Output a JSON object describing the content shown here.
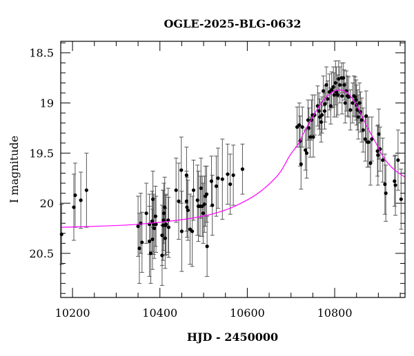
{
  "chart_data": {
    "type": "scatter",
    "title": "OGLE-2025-BLG-0632",
    "xlabel": "HJD - 2450000",
    "ylabel": "I magnitude",
    "xlim": [
      10173,
      10961
    ],
    "ylim": [
      20.94,
      18.385
    ],
    "y_inverted": true,
    "xticks": [
      10200,
      10400,
      10600,
      10800
    ],
    "xtick_labels": [
      "10200",
      "10400",
      "10600",
      "10800"
    ],
    "yticks": [
      18.5,
      19,
      19.5,
      20,
      20.5
    ],
    "ytick_labels": [
      "18.5",
      "19",
      "19.5",
      "20",
      "20.5"
    ],
    "grid": false,
    "colors": {
      "points": "#000000",
      "errorbars": "#555555",
      "model": "#ff00ff"
    },
    "series": [
      {
        "kind": "data-with-errorbars",
        "points": [
          [
            10175,
            20.31,
            0.3
          ],
          [
            10203,
            20.04,
            0.33
          ],
          [
            10206,
            19.92,
            0.32
          ],
          [
            10219,
            19.97,
            0.28
          ],
          [
            10232,
            19.87,
            0.37
          ],
          [
            10350,
            20.23,
            0.3
          ],
          [
            10353,
            20.45,
            0.35
          ],
          [
            10356,
            20.2,
            0.3
          ],
          [
            10359,
            20.39,
            0.3
          ],
          [
            10369,
            20.1,
            0.3
          ],
          [
            10376,
            20.21,
            0.3
          ],
          [
            10376,
            20.38,
            0.35
          ],
          [
            10379,
            20.5,
            0.3
          ],
          [
            10382,
            20.18,
            0.3
          ],
          [
            10383,
            20.36,
            0.3
          ],
          [
            10384,
            19.96,
            0.28
          ],
          [
            10386,
            20.21,
            0.3
          ],
          [
            10387,
            20.25,
            0.3
          ],
          [
            10390,
            20.13,
            0.3
          ],
          [
            10391,
            20.21,
            0.28
          ],
          [
            10405,
            20.32,
            0.3
          ],
          [
            10405,
            20.52,
            0.3
          ],
          [
            10407,
            20.22,
            0.35
          ],
          [
            10408,
            20.17,
            0.3
          ],
          [
            10409,
            20.1,
            0.3
          ],
          [
            10411,
            20.04,
            0.3
          ],
          [
            10412,
            20.35,
            0.3
          ],
          [
            10413,
            20.22,
            0.3
          ],
          [
            10414,
            20.21,
            0.3
          ],
          [
            10419,
            20.17,
            0.32
          ],
          [
            10420,
            20.24,
            0.3
          ],
          [
            10437,
            19.87,
            0.32
          ],
          [
            10443,
            19.98,
            0.38
          ],
          [
            10449,
            19.67,
            0.33
          ],
          [
            10450,
            20.28,
            0.4
          ],
          [
            10461,
            19.72,
            0.28
          ],
          [
            10461,
            19.98,
            0.3
          ],
          [
            10462,
            20.04,
            0.3
          ],
          [
            10464,
            20.07,
            0.3
          ],
          [
            10469,
            20.26,
            0.35
          ],
          [
            10474,
            20.28,
            0.35
          ],
          [
            10477,
            19.87,
            0.3
          ],
          [
            10486,
            19.97,
            0.35
          ],
          [
            10488,
            20.03,
            0.35
          ],
          [
            10492,
            20.03,
            0.3
          ],
          [
            10494,
            19.85,
            0.3
          ],
          [
            10497,
            20.03,
            0.3
          ],
          [
            10499,
            20.1,
            0.3
          ],
          [
            10502,
            20.01,
            0.28
          ],
          [
            10504,
            19.93,
            0.3
          ],
          [
            10507,
            19.91,
            0.28
          ],
          [
            10508,
            20.43,
            0.3
          ],
          [
            10518,
            19.78,
            0.25
          ],
          [
            10520,
            20.02,
            0.3
          ],
          [
            10529,
            19.83,
            0.3
          ],
          [
            10533,
            19.75,
            0.3
          ],
          [
            10543,
            19.76,
            0.4
          ],
          [
            10555,
            19.71,
            0.3
          ],
          [
            10561,
            19.81,
            0.3
          ],
          [
            10568,
            19.72,
            0.3
          ],
          [
            10589,
            19.66,
            0.25
          ],
          [
            10714,
            19.24,
            0.2
          ],
          [
            10719,
            19.22,
            0.22
          ],
          [
            10721,
            19.38,
            0.25
          ],
          [
            10723,
            19.61,
            0.25
          ],
          [
            10726,
            19.24,
            0.2
          ],
          [
            10733,
            19.47,
            0.2
          ],
          [
            10736,
            19.5,
            0.25
          ],
          [
            10739,
            19.17,
            0.2
          ],
          [
            10741,
            19.25,
            0.2
          ],
          [
            10744,
            19.34,
            0.2
          ],
          [
            10747,
            19.17,
            0.2
          ],
          [
            10749,
            19.12,
            0.2
          ],
          [
            10751,
            19.34,
            0.2
          ],
          [
            10754,
            19.12,
            0.2
          ],
          [
            10761,
            19.03,
            0.2
          ],
          [
            10764,
            19.08,
            0.18
          ],
          [
            10766,
            19.14,
            0.18
          ],
          [
            10769,
            19.19,
            0.2
          ],
          [
            10771,
            19.12,
            0.18
          ],
          [
            10774,
            18.88,
            0.15
          ],
          [
            10777,
            19.08,
            0.18
          ],
          [
            10778,
            19.01,
            0.18
          ],
          [
            10781,
            18.82,
            0.18
          ],
          [
            10784,
            18.96,
            0.18
          ],
          [
            10788,
            18.89,
            0.18
          ],
          [
            10791,
            19.03,
            0.18
          ],
          [
            10793,
            18.87,
            0.18
          ],
          [
            10797,
            18.84,
            0.2
          ],
          [
            10799,
            18.92,
            0.22
          ],
          [
            10802,
            18.8,
            0.22
          ],
          [
            10804,
            18.89,
            0.25
          ],
          [
            10807,
            18.92,
            0.2
          ],
          [
            10809,
            18.76,
            0.18
          ],
          [
            10812,
            18.82,
            0.18
          ],
          [
            10816,
            18.75,
            0.15
          ],
          [
            10817,
            18.93,
            0.18
          ],
          [
            10820,
            18.75,
            0.15
          ],
          [
            10822,
            18.82,
            0.15
          ],
          [
            10824,
            19.0,
            0.2
          ],
          [
            10827,
            18.88,
            0.2
          ],
          [
            10829,
            18.93,
            0.2
          ],
          [
            10832,
            18.94,
            0.2
          ],
          [
            10836,
            19.07,
            0.2
          ],
          [
            10841,
            19.0,
            0.2
          ],
          [
            10844,
            18.93,
            0.2
          ],
          [
            10847,
            18.94,
            0.2
          ],
          [
            10849,
            18.97,
            0.2
          ],
          [
            10850,
            19.02,
            0.2
          ],
          [
            10852,
            19.07,
            0.2
          ],
          [
            10854,
            19.14,
            0.22
          ],
          [
            10857,
            19.0,
            0.2
          ],
          [
            10859,
            19.09,
            0.2
          ],
          [
            10862,
            19.17,
            0.22
          ],
          [
            10865,
            19.27,
            0.22
          ],
          [
            10870,
            19.36,
            0.22
          ],
          [
            10872,
            19.13,
            0.25
          ],
          [
            10875,
            19.39,
            0.25
          ],
          [
            10878,
            19.39,
            0.25
          ],
          [
            10882,
            19.6,
            0.22
          ],
          [
            10885,
            19.36,
            0.22
          ],
          [
            10898,
            19.48,
            0.25
          ],
          [
            10899,
            19.52,
            0.3
          ],
          [
            10901,
            19.31,
            0.25
          ],
          [
            10904,
            19.46,
            0.22
          ],
          [
            10910,
            19.57,
            0.22
          ],
          [
            10915,
            19.81,
            0.3
          ],
          [
            10917,
            19.9,
            0.28
          ],
          [
            10937,
            19.78,
            0.25
          ],
          [
            10939,
            19.82,
            0.3
          ],
          [
            10945,
            19.57,
            0.3
          ],
          [
            10952,
            19.96,
            0.3
          ]
        ]
      },
      {
        "kind": "model-curve",
        "points": [
          [
            10173,
            20.24
          ],
          [
            10350,
            20.21
          ],
          [
            10508,
            20.12
          ],
          [
            10603,
            19.96
          ],
          [
            10666,
            19.74
          ],
          [
            10698,
            19.52
          ],
          [
            10718,
            19.4
          ],
          [
            10729,
            19.3
          ],
          [
            10751,
            19.13
          ],
          [
            10771,
            18.99
          ],
          [
            10792,
            18.9
          ],
          [
            10811,
            18.87
          ],
          [
            10829,
            18.9
          ],
          [
            10850,
            19.02
          ],
          [
            10871,
            19.21
          ],
          [
            10892,
            19.38
          ],
          [
            10913,
            19.55
          ],
          [
            10935,
            19.66
          ],
          [
            10961,
            19.74
          ]
        ]
      }
    ]
  }
}
